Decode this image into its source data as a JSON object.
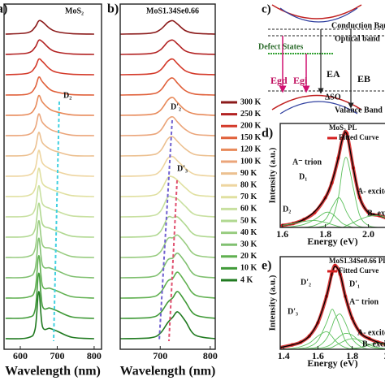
{
  "chart_data": [
    {
      "type": "line",
      "panel_label": "a)",
      "title": "MoS₂",
      "offset": true,
      "xlabel": "Wavelength (nm)",
      "xlim": [
        556,
        820
      ],
      "xticks": [
        600,
        700,
        800
      ],
      "x": [
        560,
        620,
        640,
        650,
        660,
        680,
        700,
        740,
        800
      ],
      "annotations": [
        "D₂"
      ],
      "series": [
        {
          "name": "300 K",
          "color": "#8b1a1a",
          "values": [
            0,
            0.03,
            0.15,
            0.28,
            0.26,
            0.12,
            0.05,
            0.01,
            0
          ]
        },
        {
          "name": "250 K",
          "color": "#b22222",
          "values": [
            0,
            0.03,
            0.15,
            0.3,
            0.27,
            0.12,
            0.05,
            0.01,
            0
          ]
        },
        {
          "name": "200 K",
          "color": "#d43a2a",
          "values": [
            0,
            0.03,
            0.16,
            0.33,
            0.28,
            0.12,
            0.05,
            0.01,
            0
          ]
        },
        {
          "name": "150 K",
          "color": "#e0603a",
          "values": [
            0,
            0.02,
            0.16,
            0.38,
            0.28,
            0.12,
            0.06,
            0.01,
            0
          ]
        },
        {
          "name": "120 K",
          "color": "#e88a5a",
          "values": [
            0,
            0.02,
            0.16,
            0.42,
            0.28,
            0.13,
            0.07,
            0.01,
            0
          ]
        },
        {
          "name": "100 K",
          "color": "#eba57a",
          "values": [
            0,
            0.02,
            0.16,
            0.46,
            0.28,
            0.14,
            0.08,
            0.01,
            0
          ]
        },
        {
          "name": "90 K",
          "color": "#ecc090",
          "values": [
            0,
            0.02,
            0.16,
            0.5,
            0.28,
            0.15,
            0.09,
            0.01,
            0
          ]
        },
        {
          "name": "80 K",
          "color": "#eed5a0",
          "values": [
            0,
            0.02,
            0.16,
            0.55,
            0.28,
            0.16,
            0.1,
            0.02,
            0
          ]
        },
        {
          "name": "70 K",
          "color": "#e0e0a0",
          "values": [
            0,
            0.02,
            0.17,
            0.6,
            0.28,
            0.17,
            0.11,
            0.02,
            0
          ]
        },
        {
          "name": "60 K",
          "color": "#c8e0a0",
          "values": [
            0,
            0.02,
            0.17,
            0.66,
            0.28,
            0.18,
            0.12,
            0.02,
            0
          ]
        },
        {
          "name": "50 K",
          "color": "#b0d890",
          "values": [
            0,
            0.02,
            0.17,
            0.72,
            0.28,
            0.19,
            0.13,
            0.02,
            0
          ]
        },
        {
          "name": "40 K",
          "color": "#98cc80",
          "values": [
            0,
            0.02,
            0.18,
            0.78,
            0.27,
            0.2,
            0.14,
            0.02,
            0
          ]
        },
        {
          "name": "30 K",
          "color": "#80c070",
          "values": [
            0,
            0.02,
            0.18,
            0.84,
            0.27,
            0.21,
            0.15,
            0.03,
            0
          ]
        },
        {
          "name": "20 K",
          "color": "#60b050",
          "values": [
            0,
            0.02,
            0.18,
            0.9,
            0.26,
            0.21,
            0.15,
            0.03,
            0
          ]
        },
        {
          "name": "10 K",
          "color": "#409a38",
          "values": [
            0,
            0.02,
            0.18,
            0.96,
            0.26,
            0.22,
            0.16,
            0.03,
            0
          ]
        },
        {
          "name": "4 K",
          "color": "#207a20",
          "values": [
            0,
            0.02,
            0.2,
            1.0,
            0.26,
            0.22,
            0.16,
            0.03,
            0
          ]
        }
      ]
    },
    {
      "type": "line",
      "panel_label": "b)",
      "title": "MoS1.34Se0.66",
      "offset": true,
      "xlabel": "Wavelength (nm)",
      "xlim": [
        620,
        810
      ],
      "xticks": [
        700,
        800
      ],
      "x": [
        620,
        680,
        700,
        715,
        725,
        735,
        750,
        770,
        810
      ],
      "annotations": [
        "D'₂",
        "D'₃"
      ],
      "series": [
        {
          "color": "#8b1a1a",
          "values": [
            0,
            0.02,
            0.1,
            0.26,
            0.3,
            0.22,
            0.08,
            0.02,
            0
          ]
        },
        {
          "color": "#b22222",
          "values": [
            0,
            0.02,
            0.1,
            0.28,
            0.32,
            0.23,
            0.08,
            0.02,
            0
          ]
        },
        {
          "color": "#d43a2a",
          "values": [
            0,
            0.02,
            0.1,
            0.3,
            0.35,
            0.24,
            0.09,
            0.02,
            0
          ]
        },
        {
          "color": "#e0603a",
          "values": [
            0,
            0.02,
            0.1,
            0.32,
            0.38,
            0.26,
            0.1,
            0.02,
            0
          ]
        },
        {
          "color": "#e88a5a",
          "values": [
            0,
            0.02,
            0.11,
            0.34,
            0.4,
            0.28,
            0.12,
            0.03,
            0
          ]
        },
        {
          "color": "#eba57a",
          "values": [
            0,
            0.02,
            0.11,
            0.36,
            0.42,
            0.3,
            0.14,
            0.03,
            0
          ]
        },
        {
          "color": "#ecc090",
          "values": [
            0,
            0.02,
            0.11,
            0.38,
            0.43,
            0.32,
            0.16,
            0.03,
            0
          ]
        },
        {
          "color": "#eed5a0",
          "values": [
            0,
            0.02,
            0.12,
            0.4,
            0.44,
            0.34,
            0.18,
            0.04,
            0
          ]
        },
        {
          "color": "#e0e0a0",
          "values": [
            0,
            0.02,
            0.12,
            0.42,
            0.44,
            0.36,
            0.2,
            0.04,
            0
          ]
        },
        {
          "color": "#c8e0a0",
          "values": [
            0,
            0.02,
            0.12,
            0.44,
            0.44,
            0.4,
            0.24,
            0.05,
            0
          ]
        },
        {
          "color": "#b0d890",
          "values": [
            0,
            0.02,
            0.12,
            0.44,
            0.44,
            0.45,
            0.28,
            0.05,
            0
          ]
        },
        {
          "color": "#98cc80",
          "values": [
            0,
            0.02,
            0.12,
            0.42,
            0.44,
            0.5,
            0.32,
            0.06,
            0
          ]
        },
        {
          "color": "#80c070",
          "values": [
            0,
            0.02,
            0.12,
            0.4,
            0.44,
            0.55,
            0.35,
            0.06,
            0
          ]
        },
        {
          "color": "#60b050",
          "values": [
            0,
            0.02,
            0.12,
            0.38,
            0.44,
            0.58,
            0.36,
            0.07,
            0
          ]
        },
        {
          "color": "#409a38",
          "values": [
            0,
            0.02,
            0.12,
            0.36,
            0.46,
            0.6,
            0.38,
            0.08,
            0
          ]
        },
        {
          "color": "#207a20",
          "values": [
            0,
            0.02,
            0.12,
            0.36,
            0.48,
            0.6,
            0.4,
            0.08,
            0
          ]
        }
      ]
    },
    {
      "type": "line",
      "panel_label": "d)",
      "xlabel": "Energy (eV)",
      "ylabel": "Intensity (a.u.)",
      "xlim": [
        1.59,
        2.1
      ],
      "ylim": [
        0,
        1.05
      ],
      "xticks": [
        1.6,
        1.8,
        {
          "value": 2.0,
          "label": "2.0"
        }
      ],
      "x": [
        1.6,
        1.65,
        1.7,
        1.75,
        1.8,
        1.83,
        1.86,
        1.88,
        1.9,
        1.93,
        1.96,
        2.0,
        2.05,
        2.1
      ],
      "annotations": [
        "A⁻ trion",
        "D₁",
        "A- exciton",
        "D₂",
        "B- exciton"
      ],
      "series": [
        {
          "name": "MoS₂ PL",
          "color": "#d42020",
          "marker": "o",
          "values": [
            0.02,
            0.04,
            0.08,
            0.15,
            0.3,
            0.45,
            0.7,
            0.9,
            0.95,
            0.6,
            0.3,
            0.15,
            0.12,
            0.08
          ]
        },
        {
          "name": "Fitted Curve",
          "color": "#000000",
          "values": [
            0.02,
            0.04,
            0.08,
            0.16,
            0.3,
            0.46,
            0.7,
            0.9,
            0.94,
            0.6,
            0.3,
            0.15,
            0.12,
            0.08
          ]
        },
        {
          "color": "#5cc05c",
          "values": [
            0,
            0,
            0,
            0,
            0.02,
            0.08,
            0.3,
            0.6,
            0.7,
            0.4,
            0.12,
            0.02,
            0,
            0
          ]
        },
        {
          "color": "#5cc05c",
          "values": [
            0,
            0,
            0,
            0.02,
            0.08,
            0.2,
            0.3,
            0.25,
            0.15,
            0.05,
            0.01,
            0,
            0,
            0
          ]
        },
        {
          "color": "#5cc05c",
          "values": [
            0,
            0.01,
            0.03,
            0.08,
            0.15,
            0.14,
            0.08,
            0.04,
            0.02,
            0,
            0,
            0,
            0,
            0
          ]
        },
        {
          "color": "#5cc05c",
          "values": [
            0.02,
            0.04,
            0.06,
            0.07,
            0.05,
            0.03,
            0.01,
            0,
            0,
            0,
            0,
            0,
            0,
            0
          ]
        },
        {
          "color": "#5cc05c",
          "values": [
            0,
            0,
            0,
            0,
            0,
            0,
            0,
            0,
            0.02,
            0.05,
            0.08,
            0.11,
            0.12,
            0.08
          ]
        }
      ]
    },
    {
      "type": "line",
      "panel_label": "e)",
      "xlabel": "Energy (eV)",
      "ylabel": "Intensity (a.u.)",
      "xlim": [
        1.38,
        2.02
      ],
      "ylim": [
        0,
        1.05
      ],
      "xticks": [
        1.4,
        1.6,
        1.8,
        {
          "value": 2.0,
          "label": "2"
        }
      ],
      "x": [
        1.38,
        1.45,
        1.5,
        1.55,
        1.6,
        1.65,
        1.68,
        1.7,
        1.73,
        1.76,
        1.8,
        1.85,
        1.9,
        1.95,
        2.02
      ],
      "annotations": [
        "D'₂",
        "D'₁",
        "A⁻ trion",
        "D'₃",
        "A- exciton",
        "B- exciton"
      ],
      "series": [
        {
          "name": "MoS1.34Se0.66 PL",
          "color": "#d42020",
          "marker": "o",
          "values": [
            0.02,
            0.05,
            0.08,
            0.15,
            0.3,
            0.6,
            0.85,
            0.95,
            0.85,
            0.6,
            0.35,
            0.18,
            0.12,
            0.08,
            0.04
          ]
        },
        {
          "name": "Fitted Curve",
          "color": "#000000",
          "values": [
            0.02,
            0.05,
            0.08,
            0.15,
            0.31,
            0.6,
            0.84,
            0.94,
            0.85,
            0.6,
            0.35,
            0.18,
            0.12,
            0.08,
            0.04
          ]
        },
        {
          "color": "#5cc05c",
          "values": [
            0,
            0.01,
            0.03,
            0.07,
            0.15,
            0.2,
            0.15,
            0.1,
            0.05,
            0.02,
            0,
            0,
            0,
            0,
            0
          ]
        },
        {
          "color": "#5cc05c",
          "values": [
            0,
            0,
            0.01,
            0.03,
            0.1,
            0.3,
            0.45,
            0.4,
            0.25,
            0.1,
            0.02,
            0,
            0,
            0,
            0
          ]
        },
        {
          "color": "#5cc05c",
          "values": [
            0,
            0,
            0,
            0.01,
            0.03,
            0.12,
            0.25,
            0.35,
            0.4,
            0.3,
            0.12,
            0.03,
            0,
            0,
            0
          ]
        },
        {
          "color": "#5cc05c",
          "values": [
            0,
            0,
            0,
            0,
            0.01,
            0.03,
            0.06,
            0.1,
            0.15,
            0.18,
            0.16,
            0.08,
            0.03,
            0.01,
            0
          ]
        },
        {
          "color": "#5cc05c",
          "values": [
            0,
            0,
            0,
            0,
            0,
            0.01,
            0.02,
            0.04,
            0.07,
            0.1,
            0.12,
            0.1,
            0.05,
            0.02,
            0
          ]
        },
        {
          "color": "#5cc05c",
          "values": [
            0,
            0,
            0,
            0,
            0,
            0,
            0,
            0,
            0,
            0,
            0.01,
            0.02,
            0.05,
            0.07,
            0.03
          ]
        }
      ]
    }
  ],
  "diagram": {
    "label": "c)",
    "conduction": "Conduction Band",
    "optical": "Optical band",
    "defect": "Defect States",
    "egd": "Egd",
    "egi": "Egi",
    "ea": "EA",
    "eb": "EB",
    "so": "ΔSO",
    "valence": "Valance Band"
  }
}
